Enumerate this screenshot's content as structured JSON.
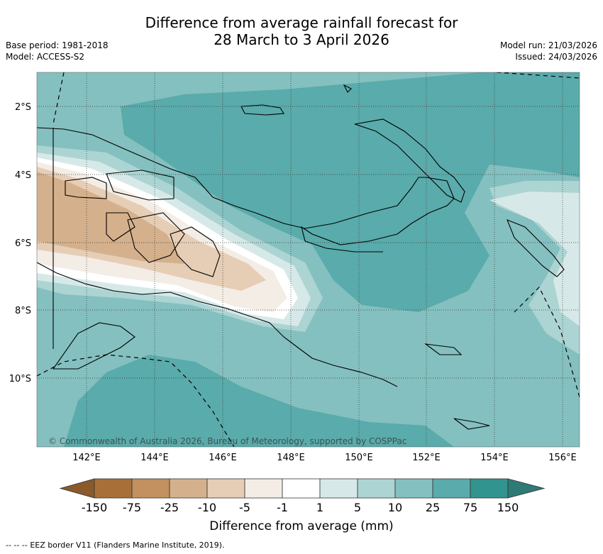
{
  "title": {
    "line1": "Difference from average rainfall forecast for",
    "line2": "28 March to 3 April 2026"
  },
  "meta": {
    "base_period": "Base period: 1981-2018",
    "model": "Model: ACCESS-S2",
    "model_run": "Model run: 21/03/2026",
    "issued": "Issued: 24/03/2026"
  },
  "map": {
    "lon_labels": [
      "142°E",
      "144°E",
      "146°E",
      "148°E",
      "150°E",
      "152°E",
      "154°E",
      "156°E"
    ],
    "lat_labels": [
      "2°S",
      "4°S",
      "6°S",
      "8°S",
      "10°S"
    ],
    "copyright": "© Commonwealth of Australia 2026, Bureau of Meteorology, supported by COSPPac"
  },
  "colorbar": {
    "ticks": [
      "-150",
      "-75",
      "-25",
      "-10",
      "-5",
      "-1",
      "1",
      "5",
      "10",
      "25",
      "75",
      "150"
    ],
    "colors": [
      "#a87038",
      "#c2915f",
      "#d4b08c",
      "#e6cdb6",
      "#f3ede6",
      "#ffffff",
      "#d6e9e8",
      "#acd4d3",
      "#84c0bf",
      "#5aabab",
      "#32948f"
    ],
    "extend_low": "#8a5a2b",
    "extend_high": "#2e7a76",
    "label": "Difference from average (mm)"
  },
  "legend_footer": "EEZ border V11 (Flanders Marine Institute, 2019)."
}
